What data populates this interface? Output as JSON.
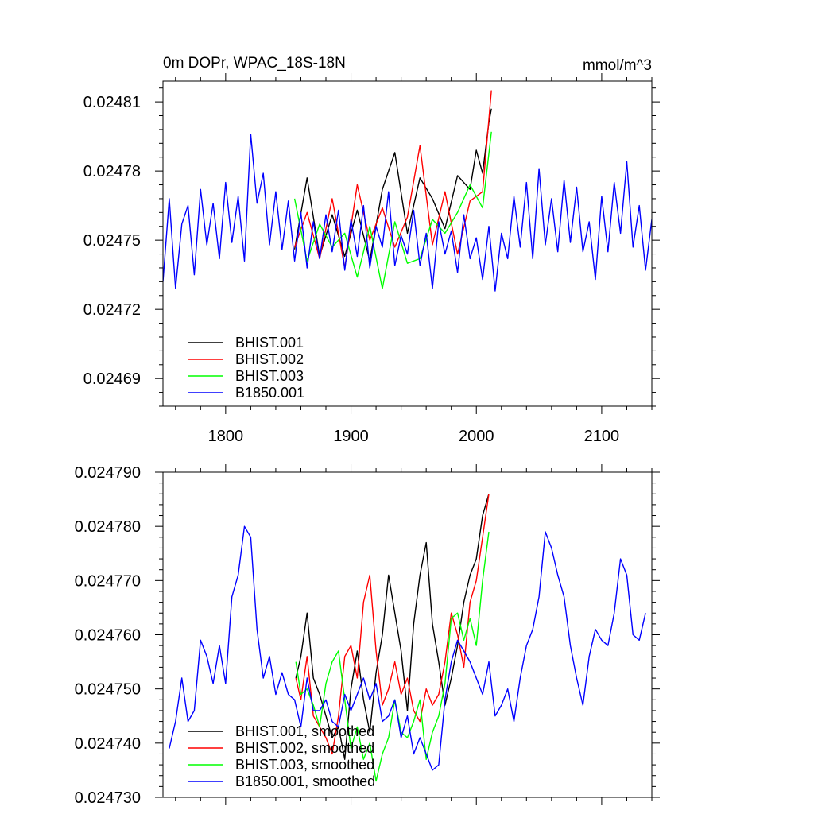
{
  "chart_data": [
    {
      "type": "line",
      "title": "0m DOPr, WPAC_18S-18N",
      "units": "mmol/m^3",
      "xlim": [
        1750,
        2140
      ],
      "ylim": [
        0.024678,
        0.024819
      ],
      "xticks": [
        1800,
        1900,
        2000,
        2100
      ],
      "xtick_labels": [
        "1800",
        "1900",
        "2000",
        "2100"
      ],
      "yticks": [
        0.02469,
        0.02472,
        0.02475,
        0.02478,
        0.02481
      ],
      "ytick_labels": [
        "0.02469",
        "0.02472",
        "0.02475",
        "0.02478",
        "0.02481"
      ],
      "grid": false,
      "legend_position": "bottom-left",
      "series": [
        {
          "name": "BHIST.001",
          "color": "#000000",
          "x": [
            1855,
            1865,
            1875,
            1885,
            1895,
            1905,
            1915,
            1925,
            1935,
            1945,
            1955,
            1965,
            1975,
            1985,
            1995,
            2000,
            2005,
            2010,
            2012
          ],
          "y": [
            0.024746,
            0.024777,
            0.024743,
            0.024761,
            0.024743,
            0.024763,
            0.024741,
            0.024772,
            0.024788,
            0.024753,
            0.024777,
            0.024768,
            0.024755,
            0.024778,
            0.024772,
            0.024789,
            0.024779,
            0.024801,
            0.024807
          ]
        },
        {
          "name": "BHIST.002",
          "color": "#ff0000",
          "x": [
            1855,
            1865,
            1875,
            1885,
            1895,
            1905,
            1915,
            1925,
            1935,
            1945,
            1955,
            1965,
            1975,
            1985,
            1995,
            2005,
            2012
          ],
          "y": [
            0.024747,
            0.024762,
            0.024742,
            0.024768,
            0.024738,
            0.024774,
            0.02475,
            0.024764,
            0.024747,
            0.02476,
            0.024791,
            0.024748,
            0.024771,
            0.024744,
            0.024767,
            0.024771,
            0.024815
          ]
        },
        {
          "name": "BHIST.003",
          "color": "#00ff00",
          "x": [
            1855,
            1865,
            1875,
            1885,
            1895,
            1905,
            1915,
            1925,
            1935,
            1945,
            1955,
            1965,
            1975,
            1985,
            1995,
            2005,
            2012
          ],
          "y": [
            0.024768,
            0.024741,
            0.024757,
            0.024747,
            0.024753,
            0.024734,
            0.024756,
            0.024729,
            0.024758,
            0.02474,
            0.024742,
            0.024759,
            0.024753,
            0.024762,
            0.024774,
            0.024764,
            0.024797
          ]
        },
        {
          "name": "B1850.001",
          "color": "#0000ff",
          "x": [
            1750,
            1755,
            1760,
            1765,
            1770,
            1775,
            1780,
            1785,
            1790,
            1795,
            1800,
            1805,
            1810,
            1815,
            1820,
            1825,
            1830,
            1835,
            1840,
            1845,
            1850,
            1855,
            1860,
            1865,
            1870,
            1875,
            1880,
            1885,
            1890,
            1895,
            1900,
            1905,
            1910,
            1915,
            1920,
            1925,
            1930,
            1935,
            1940,
            1945,
            1950,
            1955,
            1960,
            1965,
            1970,
            1975,
            1980,
            1985,
            1990,
            1995,
            2000,
            2005,
            2010,
            2015,
            2020,
            2025,
            2030,
            2035,
            2040,
            2045,
            2050,
            2055,
            2060,
            2065,
            2070,
            2075,
            2080,
            2085,
            2090,
            2095,
            2100,
            2105,
            2110,
            2115,
            2120,
            2125,
            2130,
            2135,
            2140
          ],
          "y": [
            0.024732,
            0.024768,
            0.024729,
            0.024757,
            0.024765,
            0.024735,
            0.024772,
            0.024748,
            0.024766,
            0.024742,
            0.024775,
            0.024749,
            0.024769,
            0.024741,
            0.024796,
            0.024766,
            0.024779,
            0.024748,
            0.024771,
            0.024746,
            0.024767,
            0.024741,
            0.024762,
            0.024738,
            0.024758,
            0.024742,
            0.024761,
            0.024745,
            0.024763,
            0.024737,
            0.024759,
            0.024743,
            0.024765,
            0.024738,
            0.024756,
            0.024747,
            0.024771,
            0.024739,
            0.024752,
            0.024744,
            0.024763,
            0.024739,
            0.024753,
            0.024729,
            0.024758,
            0.024744,
            0.024754,
            0.024736,
            0.024761,
            0.024742,
            0.024751,
            0.024733,
            0.024756,
            0.024728,
            0.024753,
            0.024742,
            0.024769,
            0.024747,
            0.024775,
            0.024742,
            0.024781,
            0.024748,
            0.024768,
            0.024745,
            0.024776,
            0.024749,
            0.024773,
            0.024745,
            0.024758,
            0.024733,
            0.024769,
            0.024745,
            0.024775,
            0.024753,
            0.024784,
            0.024747,
            0.024765,
            0.024737,
            0.024759
          ]
        }
      ]
    },
    {
      "type": "line",
      "xlim": [
        1750,
        2140
      ],
      "ylim": [
        0.02473,
        0.02479
      ],
      "xticks": [
        1800,
        1900,
        2000,
        2100
      ],
      "xtick_labels": [],
      "yticks": [
        0.02473,
        0.02474,
        0.02475,
        0.02476,
        0.02477,
        0.02478,
        0.02479
      ],
      "ytick_labels": [
        "0.024730",
        "0.024740",
        "0.024750",
        "0.024760",
        "0.024770",
        "0.024780",
        "0.024790"
      ],
      "grid": false,
      "legend_position": "bottom-left",
      "series": [
        {
          "name": "BHIST.001, smoothed",
          "color": "#000000",
          "x": [
            1856,
            1860,
            1865,
            1870,
            1875,
            1880,
            1885,
            1890,
            1895,
            1900,
            1905,
            1910,
            1915,
            1920,
            1925,
            1930,
            1935,
            1940,
            1945,
            1950,
            1955,
            1960,
            1965,
            1970,
            1975,
            1980,
            1985,
            1990,
            1995,
            2000,
            2005,
            2010
          ],
          "y": [
            0.024752,
            0.024756,
            0.024764,
            0.024752,
            0.024749,
            0.024745,
            0.024741,
            0.024743,
            0.024737,
            0.02475,
            0.024757,
            0.024748,
            0.024742,
            0.024753,
            0.02476,
            0.024771,
            0.024764,
            0.024757,
            0.024746,
            0.024762,
            0.024771,
            0.024777,
            0.024762,
            0.024755,
            0.024747,
            0.024752,
            0.024758,
            0.024766,
            0.024771,
            0.024774,
            0.024782,
            0.024786
          ]
        },
        {
          "name": "BHIST.002, smoothed",
          "color": "#ff0000",
          "x": [
            1856,
            1860,
            1865,
            1870,
            1875,
            1880,
            1885,
            1890,
            1895,
            1900,
            1905,
            1910,
            1915,
            1920,
            1925,
            1930,
            1935,
            1940,
            1945,
            1950,
            1955,
            1960,
            1965,
            1970,
            1975,
            1980,
            1985,
            1990,
            1995,
            2000,
            2005,
            2010
          ],
          "y": [
            0.024752,
            0.024748,
            0.024756,
            0.024745,
            0.024743,
            0.024741,
            0.024738,
            0.024745,
            0.024756,
            0.024758,
            0.024752,
            0.024766,
            0.024771,
            0.024757,
            0.024747,
            0.02475,
            0.024755,
            0.024749,
            0.024752,
            0.024746,
            0.024744,
            0.02475,
            0.024747,
            0.024749,
            0.024755,
            0.024764,
            0.02476,
            0.024754,
            0.024766,
            0.02477,
            0.024778,
            0.024786
          ]
        },
        {
          "name": "BHIST.003, smoothed",
          "color": "#00ff00",
          "x": [
            1856,
            1860,
            1865,
            1870,
            1875,
            1880,
            1885,
            1890,
            1895,
            1900,
            1905,
            1910,
            1915,
            1920,
            1925,
            1930,
            1935,
            1940,
            1945,
            1950,
            1955,
            1960,
            1965,
            1970,
            1975,
            1980,
            1985,
            1990,
            1995,
            2000,
            2005,
            2010
          ],
          "y": [
            0.024755,
            0.024749,
            0.02475,
            0.024747,
            0.024743,
            0.024751,
            0.024755,
            0.024757,
            0.024748,
            0.024739,
            0.024743,
            0.024737,
            0.02474,
            0.024733,
            0.024738,
            0.024741,
            0.024748,
            0.024742,
            0.024741,
            0.024744,
            0.024748,
            0.024737,
            0.024742,
            0.024745,
            0.024751,
            0.024763,
            0.024764,
            0.024759,
            0.024763,
            0.024758,
            0.02477,
            0.024779
          ]
        },
        {
          "name": "B1850.001, smoothed",
          "color": "#0000ff",
          "x": [
            1755,
            1760,
            1765,
            1770,
            1775,
            1780,
            1785,
            1790,
            1795,
            1800,
            1805,
            1810,
            1815,
            1820,
            1825,
            1830,
            1835,
            1840,
            1845,
            1850,
            1855,
            1860,
            1865,
            1870,
            1875,
            1880,
            1885,
            1890,
            1895,
            1900,
            1905,
            1910,
            1915,
            1920,
            1925,
            1930,
            1935,
            1940,
            1945,
            1950,
            1955,
            1960,
            1965,
            1970,
            1975,
            1980,
            1985,
            1990,
            1995,
            2000,
            2005,
            2010,
            2015,
            2020,
            2025,
            2030,
            2035,
            2040,
            2045,
            2050,
            2055,
            2060,
            2065,
            2070,
            2075,
            2080,
            2085,
            2090,
            2095,
            2100,
            2105,
            2110,
            2115,
            2120,
            2125,
            2130,
            2135
          ],
          "y": [
            0.024739,
            0.024744,
            0.024752,
            0.024744,
            0.024746,
            0.024759,
            0.024756,
            0.024751,
            0.024758,
            0.024751,
            0.024767,
            0.024771,
            0.02478,
            0.024778,
            0.024761,
            0.024752,
            0.024756,
            0.024749,
            0.024753,
            0.024749,
            0.024748,
            0.024743,
            0.024752,
            0.024746,
            0.024746,
            0.024748,
            0.024744,
            0.024743,
            0.024749,
            0.024746,
            0.024749,
            0.024752,
            0.024748,
            0.024751,
            0.024744,
            0.024745,
            0.024748,
            0.024741,
            0.024745,
            0.024738,
            0.024741,
            0.024738,
            0.024735,
            0.024736,
            0.024748,
            0.024755,
            0.024759,
            0.024757,
            0.024755,
            0.024752,
            0.024749,
            0.024755,
            0.024745,
            0.024747,
            0.02475,
            0.024744,
            0.024752,
            0.024758,
            0.024761,
            0.024767,
            0.024779,
            0.024776,
            0.024771,
            0.024767,
            0.024758,
            0.024752,
            0.024747,
            0.024756,
            0.024761,
            0.024759,
            0.024758,
            0.024764,
            0.024774,
            0.024771,
            0.02476,
            0.024759,
            0.024764
          ]
        }
      ]
    }
  ]
}
